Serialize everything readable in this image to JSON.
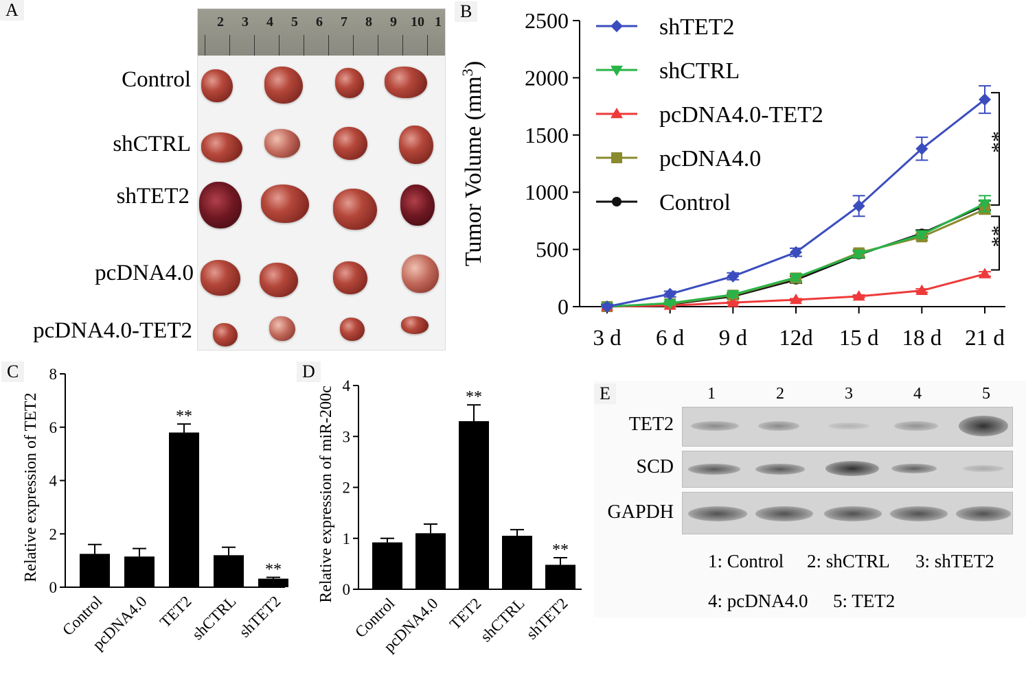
{
  "panel_labels": {
    "a": "A",
    "b": "B",
    "c": "C",
    "d": "D",
    "e": "E"
  },
  "panelA": {
    "ruler_numbers": [
      "2",
      "3",
      "4",
      "5",
      "6",
      "7",
      "8",
      "9",
      "10",
      "1"
    ],
    "rows": [
      "Control",
      "shCTRL",
      "shTET2",
      "pcDNA4.0",
      "pcDNA4.0-TET2"
    ]
  },
  "chart_data": [
    {
      "type": "line",
      "ylabel": "Tumor Volume (mm3)",
      "ylabel_main": "Tumor Volume (mm",
      "ylabel_sup": "3",
      "ylabel_end": ")",
      "categories": [
        "3 d",
        "6 d",
        "9 d",
        "12d",
        "15 d",
        "18 d",
        "21 d"
      ],
      "ylim": [
        0,
        2500
      ],
      "yticks": [
        "0",
        "500",
        "1000",
        "1500",
        "2000",
        "2500"
      ],
      "series": [
        {
          "name": "shTET2",
          "color": "#3b4dbe",
          "marker": "diamond",
          "values": [
            0,
            110,
            265,
            475,
            880,
            1380,
            1810
          ],
          "err": [
            20,
            25,
            30,
            35,
            90,
            100,
            120
          ]
        },
        {
          "name": "shCTRL",
          "color": "#29b449",
          "marker": "tri-down",
          "values": [
            0,
            30,
            105,
            255,
            460,
            630,
            900
          ],
          "err": [
            10,
            15,
            20,
            30,
            30,
            30,
            70
          ]
        },
        {
          "name": "pcDNA4.0-TET2",
          "color": "#ee3a3a",
          "marker": "tri-up",
          "values": [
            0,
            10,
            35,
            60,
            90,
            140,
            285
          ],
          "err": [
            5,
            5,
            8,
            10,
            12,
            15,
            20
          ]
        },
        {
          "name": "pcDNA4.0",
          "color": "#8a8a2e",
          "marker": "square",
          "values": [
            0,
            25,
            100,
            250,
            470,
            610,
            850
          ],
          "err": [
            10,
            15,
            20,
            30,
            30,
            30,
            40
          ]
        },
        {
          "name": "Control",
          "color": "#111111",
          "marker": "circle",
          "values": [
            0,
            20,
            90,
            235,
            455,
            640,
            885
          ],
          "err": [
            10,
            15,
            20,
            30,
            30,
            30,
            40
          ]
        }
      ],
      "annotations": [
        "**",
        "**"
      ]
    },
    {
      "type": "bar",
      "ylabel": "Relative expression of TET2",
      "categories": [
        "Control",
        "pcDNA4.0",
        "TET2",
        "shCTRL",
        "shTET2"
      ],
      "values": [
        1.25,
        1.15,
        5.8,
        1.2,
        0.32
      ],
      "err": [
        0.35,
        0.3,
        0.32,
        0.3,
        0.05
      ],
      "ylim": [
        0,
        8
      ],
      "yticks": [
        "0",
        "2",
        "4",
        "6",
        "8"
      ],
      "sig": [
        "",
        "",
        "**",
        "",
        "**"
      ]
    },
    {
      "type": "bar",
      "ylabel": "Relative expression of miR-200c",
      "categories": [
        "Control",
        "pcDNA4.0",
        "TET2",
        "shCTRL",
        "shTET2"
      ],
      "values": [
        0.92,
        1.1,
        3.3,
        1.05,
        0.48
      ],
      "err": [
        0.08,
        0.18,
        0.32,
        0.12,
        0.14
      ],
      "ylim": [
        0,
        4
      ],
      "yticks": [
        "0",
        "1",
        "2",
        "3",
        "4"
      ],
      "sig": [
        "",
        "",
        "**",
        "",
        "**"
      ]
    }
  ],
  "panelE": {
    "lanes": [
      "1",
      "2",
      "3",
      "4",
      "5"
    ],
    "rows": [
      "TET2",
      "SCD",
      "GAPDH"
    ],
    "legend": [
      "1: Control",
      "2: shCTRL",
      "3: shTET2",
      "4: pcDNA4.0",
      "5: TET2"
    ]
  }
}
